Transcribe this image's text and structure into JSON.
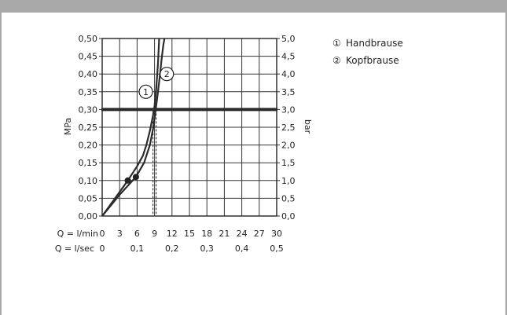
{
  "chart_data": {
    "type": "line",
    "y_left_label": "MPa",
    "y_right_label": "bar",
    "y_left_ticks": [
      "0,00",
      "0,05",
      "0,10",
      "0,15",
      "0,20",
      "0,25",
      "0,30",
      "0,35",
      "0,40",
      "0,45",
      "0,50"
    ],
    "y_right_ticks": [
      "0,0",
      "0,5",
      "1,0",
      "1,5",
      "2,0",
      "2,5",
      "3,0",
      "3,5",
      "4,0",
      "4,5",
      "5,0"
    ],
    "x_row1_label": "Q = l/min",
    "x_row1_ticks": [
      "0",
      "3",
      "6",
      "9",
      "12",
      "15",
      "18",
      "21",
      "24",
      "27",
      "30"
    ],
    "x_row2_label": "Q = l/sec",
    "x_row2_ticks": [
      "0",
      "0,1",
      "0,2",
      "0,3",
      "0,4",
      "0,5"
    ],
    "xlim": [
      0,
      30
    ],
    "ylim": [
      0,
      0.5
    ],
    "reference_line": {
      "y": 0.3,
      "x_intersect": 9
    },
    "series": [
      {
        "marker": "1",
        "legend_symbol": "①",
        "name": "Handbrause",
        "point": [
          4.4,
          0.1
        ],
        "x": [
          0,
          2,
          4.4,
          6,
          7,
          7.6,
          8.2,
          8.7,
          9.0,
          9.3,
          9.6,
          9.8
        ],
        "y": [
          0,
          0.045,
          0.1,
          0.14,
          0.17,
          0.2,
          0.24,
          0.28,
          0.31,
          0.36,
          0.43,
          0.5
        ]
      },
      {
        "marker": "2",
        "legend_symbol": "②",
        "name": "Kopfbrause",
        "point": [
          5.8,
          0.11
        ],
        "x": [
          0,
          3,
          5.8,
          7.2,
          8.2,
          8.8,
          9.2,
          9.6,
          9.95,
          10.2,
          10.5,
          10.7
        ],
        "y": [
          0,
          0.06,
          0.11,
          0.15,
          0.2,
          0.25,
          0.3,
          0.35,
          0.4,
          0.44,
          0.48,
          0.5
        ]
      }
    ]
  }
}
